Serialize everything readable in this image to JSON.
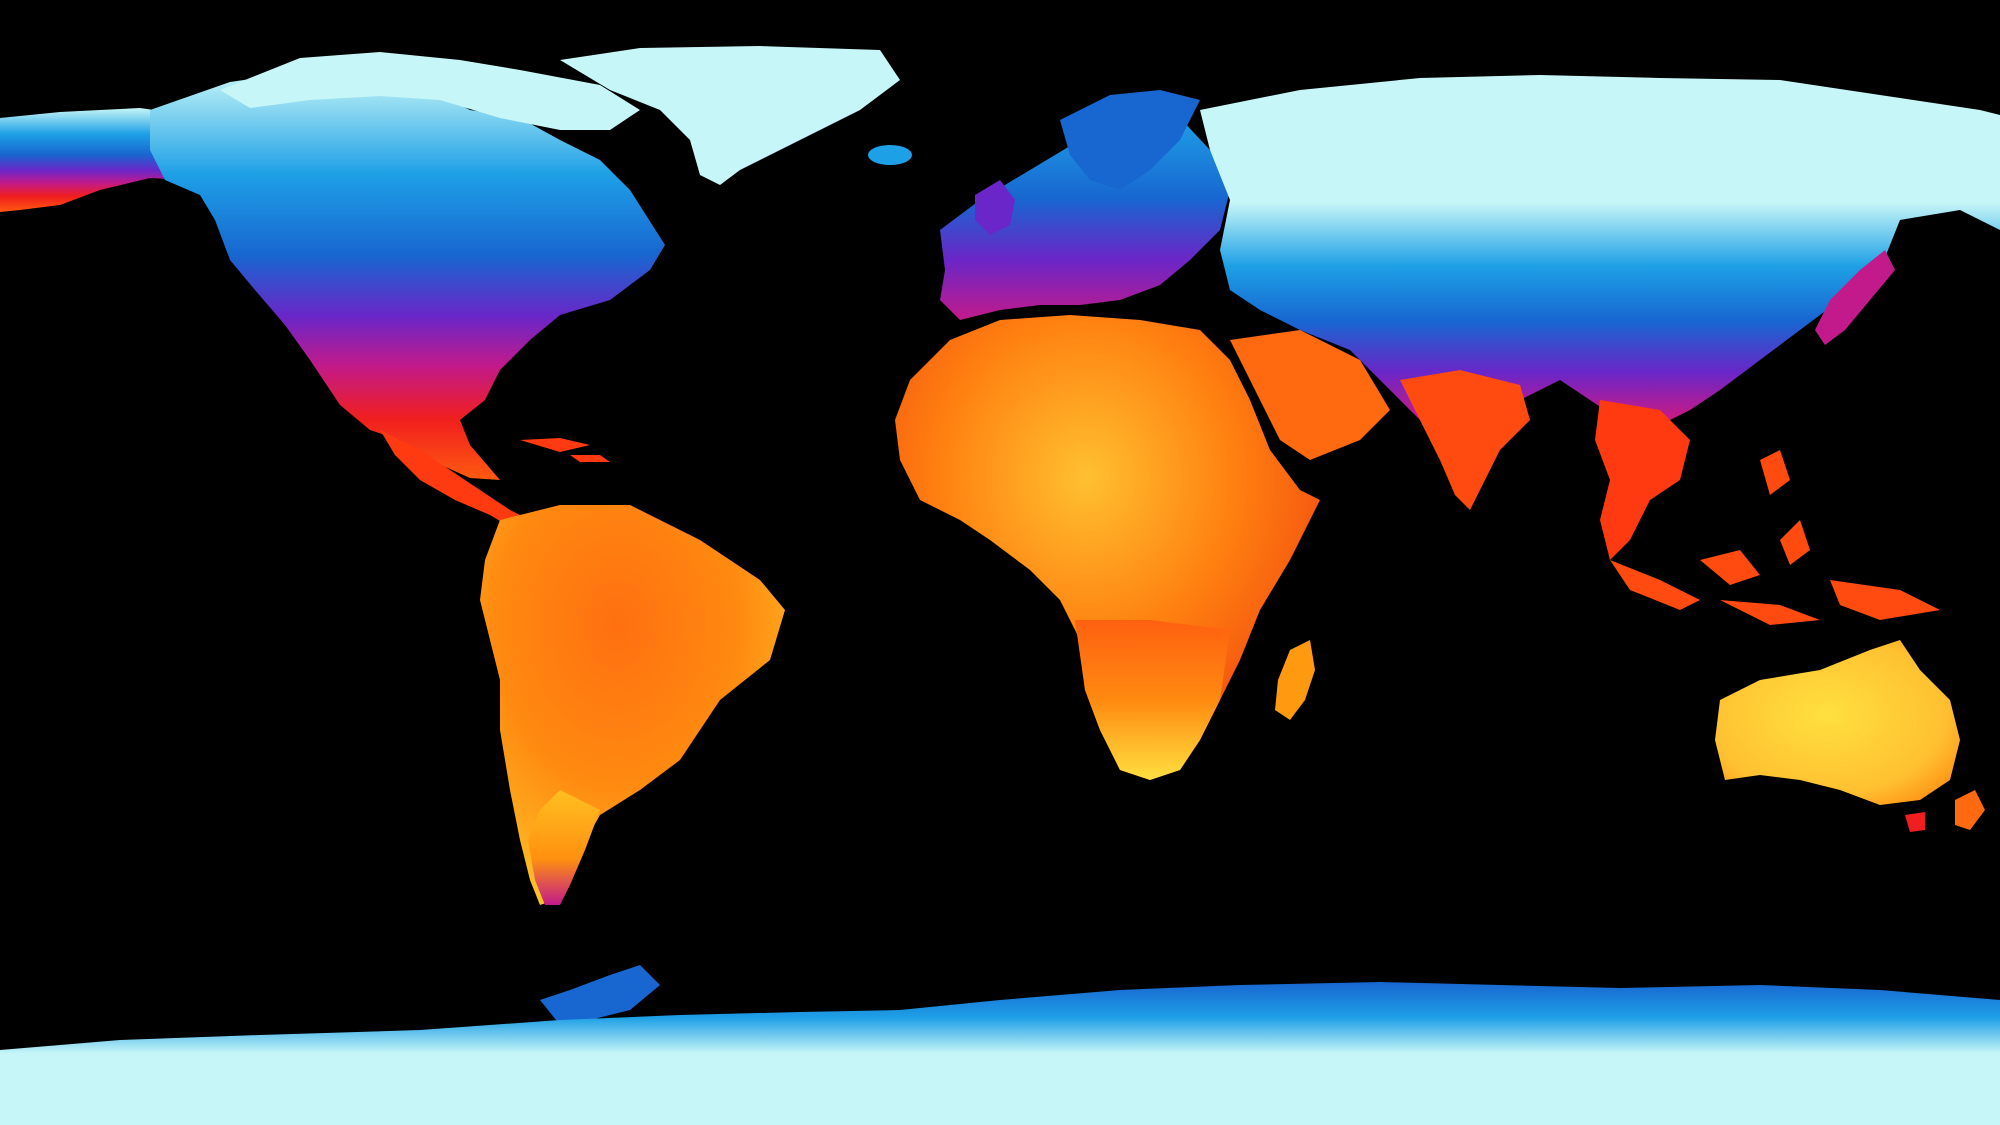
{
  "map": {
    "projection": "equirectangular",
    "ocean_color": "#000000",
    "legend": "none",
    "labels": "none"
  },
  "colors": {
    "ice": "#c6f6f7",
    "cold": "#1ea0e6",
    "cool": "#1866d0",
    "mild": "#6a26c8",
    "temperate": "#c21a8a",
    "warm": "#f01e1e",
    "hot": "#ff6a10",
    "very_hot": "#ffa010",
    "hottest": "#ffe040",
    "ocean": "#000000"
  },
  "land_masses": [
    {
      "name": "greenland",
      "zone": "ice"
    },
    {
      "name": "north-america",
      "zone": "mixed"
    },
    {
      "name": "south-america",
      "zone": "hot"
    },
    {
      "name": "europe",
      "zone": "mixed"
    },
    {
      "name": "africa",
      "zone": "hot"
    },
    {
      "name": "asia",
      "zone": "mixed"
    },
    {
      "name": "australia",
      "zone": "hottest"
    },
    {
      "name": "antarctica",
      "zone": "ice"
    },
    {
      "name": "madagascar",
      "zone": "hot"
    },
    {
      "name": "southeast-asia-islands",
      "zone": "hot"
    }
  ]
}
